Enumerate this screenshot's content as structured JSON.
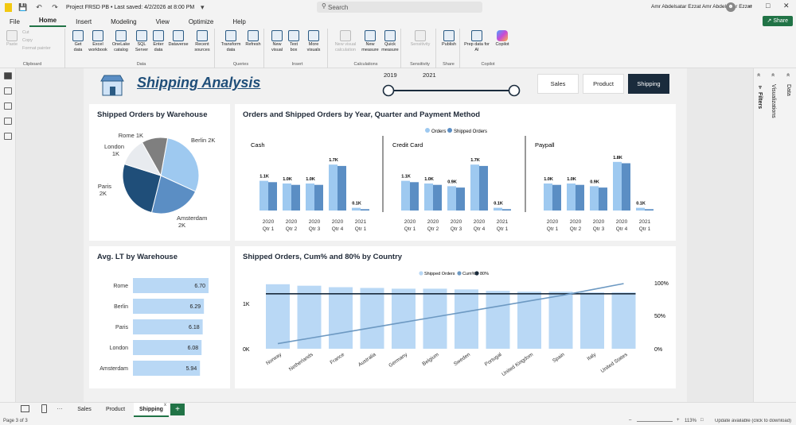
{
  "window": {
    "title": "Project FRSD PB • Last saved: 4/2/2026 at 8:00 PM",
    "search_placeholder": "Search",
    "user_name": "Amr Abdelsatar Ezzat Amr Abdelsatar Ezzat",
    "share_label": "Share"
  },
  "menu": [
    "File",
    "Home",
    "Insert",
    "Modeling",
    "View",
    "Optimize",
    "Help"
  ],
  "ribbon": {
    "clipboard": {
      "label": "Clipboard",
      "paste": "Paste",
      "cut": "Cut",
      "copy": "Copy",
      "format_painter": "Format painter"
    },
    "data": {
      "label": "Data",
      "buttons": [
        "Get data",
        "Excel workbook",
        "OneLake catalog",
        "SQL Server",
        "Enter data",
        "Dataverse",
        "Recent sources"
      ]
    },
    "queries": {
      "label": "Queries",
      "buttons": [
        "Transform data",
        "Refresh"
      ]
    },
    "insert": {
      "label": "Insert",
      "buttons": [
        "New visual",
        "Text box",
        "More visuals"
      ]
    },
    "calculations": {
      "label": "Calculations",
      "buttons": [
        "New visual calculation",
        "New measure",
        "Quick measure"
      ]
    },
    "sensitivity": {
      "label": "Sensitivity",
      "buttons": [
        "Sensitivity"
      ]
    },
    "share": {
      "label": "Share",
      "buttons": [
        "Publish"
      ]
    },
    "copilot": {
      "label": "Copilot",
      "buttons": [
        "Prep data for AI",
        "Copilot"
      ]
    }
  },
  "panes": {
    "filters": "Filters",
    "visualizations": "Visualizations",
    "data": "Data"
  },
  "report": {
    "title": "Shipping Analysis",
    "slider": {
      "start": "2019",
      "end": "2021"
    },
    "nav_buttons": [
      "Sales",
      "Product",
      "Shipping"
    ],
    "active_nav": "Shipping"
  },
  "pages": [
    "Sales",
    "Product",
    "Shipping"
  ],
  "active_page": "Shipping",
  "status": {
    "page": "Page 3 of 3",
    "zoom": "113%",
    "update": "Update available (click to download)"
  },
  "chart_data": [
    {
      "type": "pie",
      "title": "Shipped Orders by Warehouse",
      "slices": [
        {
          "label": "Berlin",
          "value": 2,
          "display": "2K",
          "color": "#9ec9f0"
        },
        {
          "label": "Amsterdam",
          "value": 2,
          "display": "2K",
          "color": "#5b8ec4"
        },
        {
          "label": "Paris",
          "value": 2,
          "display": "2K",
          "color": "#1f4e79"
        },
        {
          "label": "London",
          "value": 1,
          "display": "1K",
          "color": "#e8ebef"
        },
        {
          "label": "Rome",
          "value": 1,
          "display": "1K",
          "color": "#7f7f7f"
        }
      ]
    },
    {
      "type": "bar",
      "title": "Orders and Shipped Orders by Year, Quarter and Payment Method",
      "legend": [
        "Orders",
        "Shipped Orders"
      ],
      "colors": {
        "Orders": "#9ec9f0",
        "Shipped Orders": "#5b8ec4"
      },
      "categories": [
        "2020 Qtr 1",
        "2020 Qtr 2",
        "2020 Qtr 3",
        "2020 Qtr 4",
        "2021 Qtr 1"
      ],
      "panels": [
        {
          "name": "Cash",
          "orders": [
            1.1,
            1.0,
            1.0,
            1.7,
            0.1
          ],
          "shipped": [
            1.05,
            0.95,
            0.95,
            1.65,
            0.05
          ],
          "labels": [
            "1.1K",
            "1.0K",
            "1.0K",
            "1.7K",
            "0.1K"
          ]
        },
        {
          "name": "Credit Card",
          "orders": [
            1.1,
            1.0,
            0.9,
            1.7,
            0.1
          ],
          "shipped": [
            1.05,
            0.95,
            0.85,
            1.65,
            0.05
          ],
          "labels": [
            "1.1K",
            "1.0K",
            "0.9K",
            "1.7K",
            "0.1K"
          ]
        },
        {
          "name": "Paypall",
          "orders": [
            1.0,
            1.0,
            0.9,
            1.8,
            0.1
          ],
          "shipped": [
            0.95,
            0.95,
            0.85,
            1.75,
            0.05
          ],
          "labels": [
            "1.0K",
            "1.0K",
            "0.9K",
            "1.8K",
            "0.1K"
          ]
        }
      ]
    },
    {
      "type": "bar",
      "title": "Avg. LT by Warehouse",
      "categories": [
        "Rome",
        "Berlin",
        "Paris",
        "London",
        "Amsterdam"
      ],
      "values": [
        6.7,
        6.29,
        6.18,
        6.08,
        5.94
      ],
      "labels": [
        "6.70",
        "6.29",
        "6.18",
        "6.08",
        "5.94"
      ],
      "color": "#b9d8f5"
    },
    {
      "type": "bar",
      "title": "Shipped Orders, Cum% and 80% by Country",
      "legend": [
        "Shipped Orders",
        "Cum%",
        "80%"
      ],
      "categories": [
        "Norway",
        "Netherlands",
        "France",
        "Australia",
        "Germany",
        "Belgium",
        "Sweden",
        "Portugal",
        "United Kingdom",
        "Spain",
        "Italy",
        "United States"
      ],
      "values": [
        0.87,
        0.85,
        0.83,
        0.82,
        0.81,
        0.81,
        0.8,
        0.78,
        0.77,
        0.77,
        0.76,
        0.76
      ],
      "cum_pct": [
        0.1,
        0.18,
        0.26,
        0.34,
        0.42,
        0.5,
        0.58,
        0.66,
        0.74,
        0.82,
        0.91,
        1.0
      ],
      "threshold": 0.8,
      "y_left_ticks": [
        "0K",
        "1K"
      ],
      "y_right_ticks": [
        "0%",
        "50%",
        "100%"
      ],
      "colors": {
        "bars": "#b9d8f5",
        "cum": "#6d99c2",
        "threshold": "#1a2b3c"
      }
    }
  ]
}
